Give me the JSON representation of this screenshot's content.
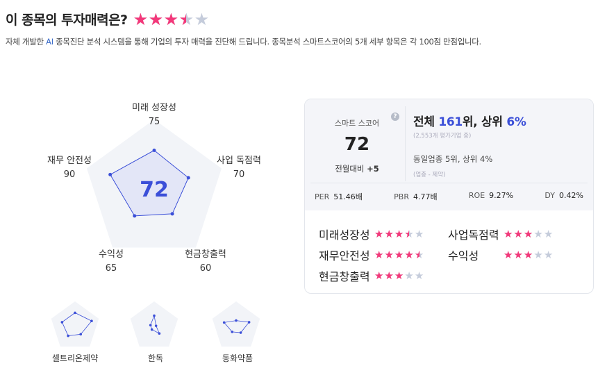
{
  "header": {
    "title": "이 종목의 투자매력은?",
    "rating": 3.5,
    "description_prefix": "자체 개발한 ",
    "description_ai": "AI",
    "description": " 종목진단 분석 시스템을 통해 기업의 투자 매력을 진단해 드립니다. 종목분석 스마트스코어의 5개 세부 항목은 각 100점 만점입니다."
  },
  "radar": {
    "score": "72",
    "axes": [
      {
        "label": "미래 성장성",
        "value": 75
      },
      {
        "label": "사업 독점력",
        "value": 70
      },
      {
        "label": "현금창출력",
        "value": 60
      },
      {
        "label": "수익성",
        "value": 65
      },
      {
        "label": "재무 안전성",
        "value": 90
      }
    ],
    "color": "#3b4fd8"
  },
  "peers": [
    {
      "name": "셀트리온제약"
    },
    {
      "name": "한독"
    },
    {
      "name": "동화약품"
    }
  ],
  "card": {
    "smart_label": "스마트 스코어",
    "score": "72",
    "change_label": "전월대비",
    "change": "+5",
    "rank_prefix": "전체 ",
    "rank": "161",
    "rank_mid": "위, 상위 ",
    "pct": "6%",
    "total": "(2,553개 평가기업 중)",
    "industry": "동일업종 5위, 상위 4%",
    "industry_sub": "(업종 - 제약)",
    "metrics": [
      {
        "k": "PER",
        "v": "51.46배"
      },
      {
        "k": "PBR",
        "v": "4.77배"
      },
      {
        "k": "ROE",
        "v": "9.27%"
      },
      {
        "k": "DY",
        "v": "0.42%"
      }
    ],
    "ratings": [
      {
        "label": "미래성장성",
        "stars": 3.5
      },
      {
        "label": "사업독점력",
        "stars": 3
      },
      {
        "label": "재무안전성",
        "stars": 4.5
      },
      {
        "label": "수익성",
        "stars": 3
      },
      {
        "label": "현금창출력",
        "stars": 3
      }
    ]
  },
  "colors": {
    "star": "#f3387a",
    "star_empty": "#c5ccdb",
    "accent": "#3b4fd8"
  }
}
